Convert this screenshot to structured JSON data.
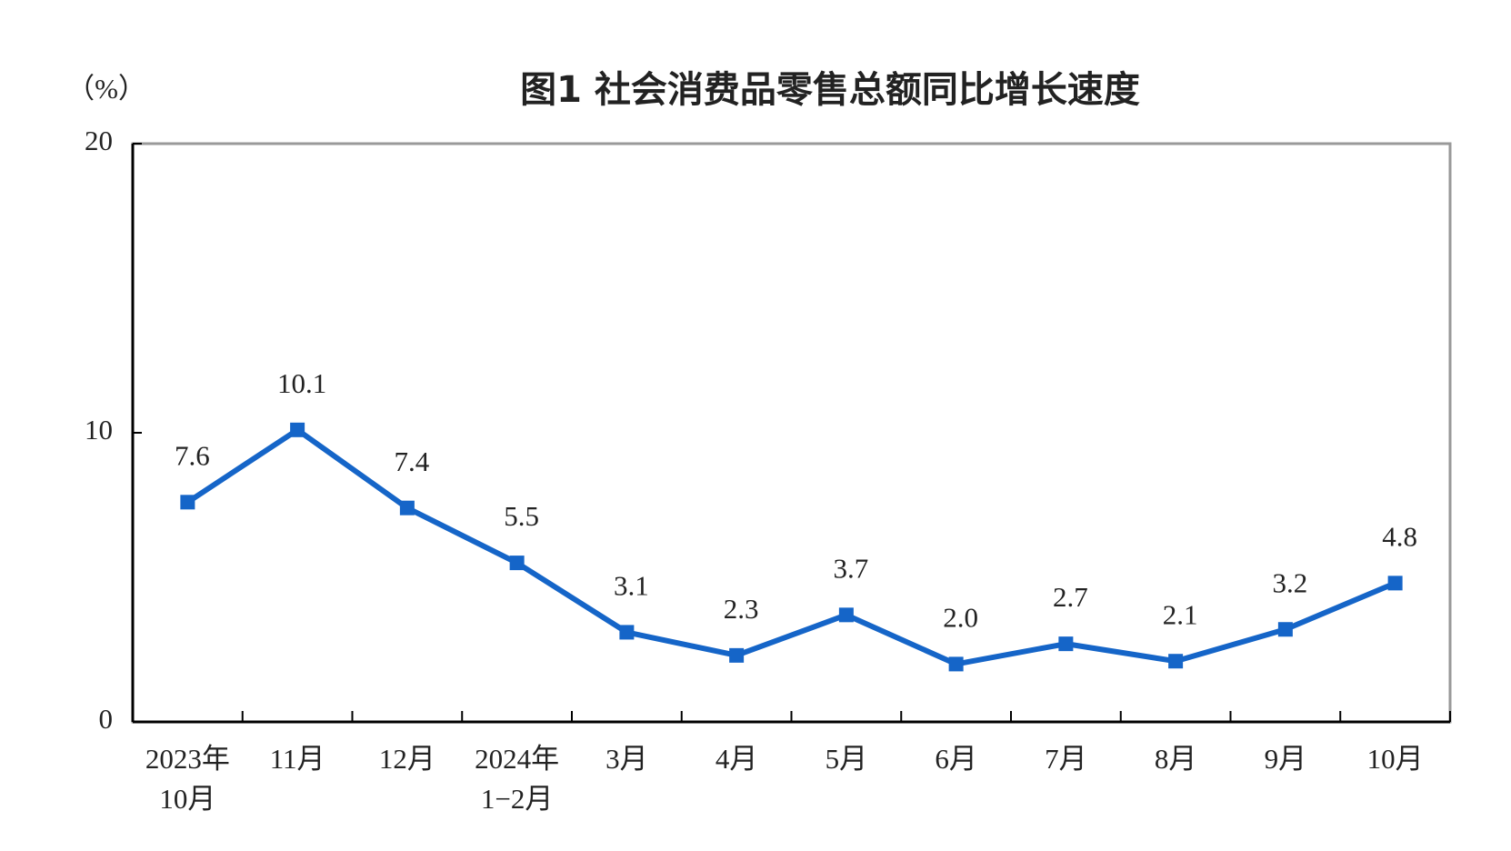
{
  "chart_data": {
    "type": "line",
    "title": "图1  社会消费品零售总额同比增长速度",
    "y_label": "（%）",
    "categories": [
      [
        "2023年",
        "10月"
      ],
      [
        "11月"
      ],
      [
        "12月"
      ],
      [
        "2024年",
        "1−2月"
      ],
      [
        "3月"
      ],
      [
        "4月"
      ],
      [
        "5月"
      ],
      [
        "6月"
      ],
      [
        "7月"
      ],
      [
        "8月"
      ],
      [
        "9月"
      ],
      [
        "10月"
      ]
    ],
    "series": [
      {
        "name": "社会消费品零售总额同比增长速度",
        "color": "#1565c8",
        "values": [
          7.6,
          10.1,
          7.4,
          5.5,
          3.1,
          2.3,
          3.7,
          2.0,
          2.7,
          2.1,
          3.2,
          4.8
        ],
        "value_labels": [
          "7.6",
          "10.1",
          "7.4",
          "5.5",
          "3.1",
          "2.3",
          "3.7",
          "2.0",
          "2.7",
          "2.1",
          "3.2",
          "4.8"
        ]
      }
    ],
    "ylim": [
      0,
      20
    ],
    "yticks": [
      0,
      10,
      20
    ],
    "grid": false
  }
}
